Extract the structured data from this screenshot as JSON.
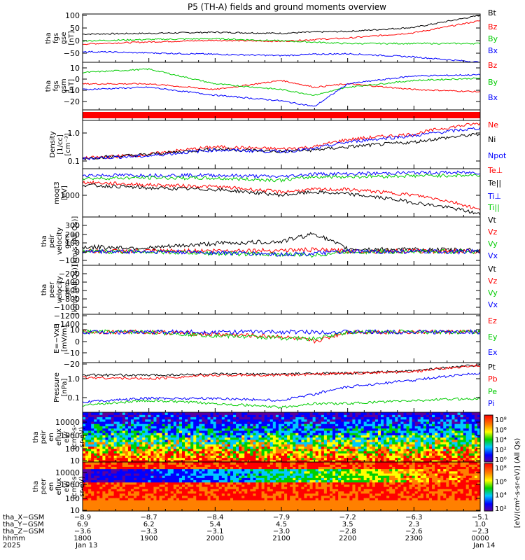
{
  "title": "P5 (TH-A) fields and ground moments overview",
  "colors": {
    "black": "#000000",
    "red": "#ff0000",
    "green": "#00cc00",
    "blue": "#0000ff"
  },
  "panels": [
    {
      "id": "fgs_gse",
      "ylabel": [
        "tha",
        "fgs",
        "gse",
        "[nT]"
      ],
      "yticks": [
        "100",
        "50",
        "0",
        "−50"
      ],
      "legend": [
        {
          "t": "Bt",
          "c": "black"
        },
        {
          "t": "Bz",
          "c": "red"
        },
        {
          "t": "By",
          "c": "green"
        },
        {
          "t": "Bx",
          "c": "blue"
        }
      ]
    },
    {
      "id": "fgs_gsm",
      "ylabel": [
        "tha",
        "fgs",
        "gsm",
        "[nT]"
      ],
      "yticks": [
        "10",
        "0",
        "−10",
        "−20"
      ],
      "legend": [
        {
          "t": "Bz",
          "c": "red"
        },
        {
          "t": "By",
          "c": "green"
        },
        {
          "t": "Bx",
          "c": "blue"
        }
      ]
    },
    {
      "id": "flag",
      "ylabel": [],
      "yticks": [],
      "legend": []
    },
    {
      "id": "density",
      "ylabel": [
        "Density",
        "[1/cc]",
        "[cm⁻³]"
      ],
      "yticks": [
        "1.0",
        "0.1"
      ],
      "legend": [
        {
          "t": "Ne",
          "c": "red"
        },
        {
          "t": "Ni",
          "c": "black"
        },
        {
          "t": "Npot",
          "c": "blue"
        }
      ]
    },
    {
      "id": "temp",
      "ylabel": [
        "moqt3",
        "[eV]"
      ],
      "yticks": [
        "1000"
      ],
      "legend": [
        {
          "t": "Te⊥",
          "c": "red"
        },
        {
          "t": "Te||",
          "c": "black"
        },
        {
          "t": "Ti⊥",
          "c": "blue"
        },
        {
          "t": "Ti||",
          "c": "green"
        }
      ]
    },
    {
      "id": "peir_vel",
      "ylabel": [
        "tha",
        "peir",
        "velocity",
        "gsm",
        "[km/s (All Qs)]"
      ],
      "yticks": [
        "300",
        "200",
        "100",
        "0",
        "−100"
      ],
      "legend": [
        {
          "t": "Vt",
          "c": "black"
        },
        {
          "t": "Vz",
          "c": "red"
        },
        {
          "t": "Vy",
          "c": "green"
        },
        {
          "t": "Vx",
          "c": "blue"
        }
      ]
    },
    {
      "id": "peer_vel",
      "ylabel": [
        "tha",
        "peer",
        "velocity",
        "gsm",
        "[km/s (All Qs)]"
      ],
      "yticks": [
        "−200",
        "−400",
        "−600",
        "−800",
        "−1000",
        "−1200",
        "−1400"
      ],
      "legend": [
        {
          "t": "Vt",
          "c": "black"
        },
        {
          "t": "Vz",
          "c": "red"
        },
        {
          "t": "Vy",
          "c": "green"
        },
        {
          "t": "Vx",
          "c": "blue"
        }
      ]
    },
    {
      "id": "efield",
      "ylabel": [
        "E=−VxB",
        "[mV/m]"
      ],
      "yticks": [
        "10",
        "0",
        "−10",
        "−20"
      ],
      "legend": [
        {
          "t": "Ez",
          "c": "red"
        },
        {
          "t": "Ey",
          "c": "green"
        },
        {
          "t": "Ex",
          "c": "blue"
        }
      ]
    },
    {
      "id": "pressure",
      "ylabel": [
        "Pressure",
        "[nPa]"
      ],
      "yticks": [
        "1.0",
        "0.1"
      ],
      "legend": [
        {
          "t": "Pt",
          "c": "black"
        },
        {
          "t": "Pb",
          "c": "red"
        },
        {
          "t": "Pe",
          "c": "green"
        },
        {
          "t": "Pi",
          "c": "blue"
        }
      ]
    },
    {
      "id": "peir_spec",
      "ylabel": [
        "tha",
        "peir",
        "en",
        "eflux",
        "eV/",
        "(cm²-s-",
        "sr-eV)"
      ],
      "yticks": [
        "10000",
        "1000",
        "100",
        "10"
      ],
      "legend": []
    },
    {
      "id": "peer_spec",
      "ylabel": [
        "tha",
        "peer",
        "en",
        "eflux",
        "eV/",
        "(cm²-s-",
        "sr-eV)"
      ],
      "yticks": [
        "10000",
        "1000",
        "100",
        "10"
      ],
      "legend": []
    }
  ],
  "colorbars": [
    {
      "ticks": [
        "10⁸",
        "10⁶",
        "10⁴",
        "10²",
        "10⁰"
      ],
      "label": "[eV/(cm²-s-sr-eV)] (All Qs)"
    },
    {
      "ticks": [
        "10⁸",
        "10⁶",
        "10⁴",
        "10²"
      ],
      "label": "[eV/(cm²-s-sr-eV)] (All Qs)"
    }
  ],
  "footer": {
    "row_labels": [
      "tha_X−GSM",
      "tha_Y−GSM",
      "tha_Z−GSM",
      "hhmm",
      "2025"
    ],
    "columns": [
      {
        "x": "−8.9",
        "y": "6.9",
        "z": "−3.6",
        "t": "1800",
        "d": "Jan 13"
      },
      {
        "x": "−8.7",
        "y": "6.2",
        "z": "−3.3",
        "t": "1900",
        "d": ""
      },
      {
        "x": "−8.4",
        "y": "5.4",
        "z": "−3.1",
        "t": "2000",
        "d": ""
      },
      {
        "x": "−7.9",
        "y": "4.5",
        "z": "−3.0",
        "t": "2100",
        "d": ""
      },
      {
        "x": "−7.2",
        "y": "3.5",
        "z": "−2.8",
        "t": "2200",
        "d": ""
      },
      {
        "x": "−6.3",
        "y": "2.3",
        "z": "−2.6",
        "t": "2300",
        "d": ""
      },
      {
        "x": "−5.1",
        "y": "1.0",
        "z": "−2.3",
        "t": "0000",
        "d": "Jan 14"
      }
    ]
  },
  "chart_data": {
    "type": "line",
    "title": "P5 (TH-A) fields and ground moments overview",
    "x_range": [
      "2025-01-13 18:00",
      "2025-01-14 00:00"
    ],
    "xlabel": "hhmm",
    "panels": [
      {
        "id": "fgs_gse",
        "ylim": [
          -70,
          110
        ],
        "x": [
          18.0,
          19.0,
          20.0,
          21.0,
          21.5,
          22.0,
          23.0,
          24.0
        ],
        "series": [
          {
            "name": "Bt",
            "values": [
              35,
              38,
              42,
              38,
              43,
              45,
              60,
              105
            ]
          },
          {
            "name": "Bz",
            "values": [
              -2,
              6,
              12,
              8,
              15,
              20,
              40,
              85
            ]
          },
          {
            "name": "By",
            "values": [
              10,
              15,
              18,
              10,
              5,
              0,
              0,
              0
            ]
          },
          {
            "name": "Bx",
            "values": [
              -30,
              -35,
              -40,
              -45,
              -40,
              -38,
              -50,
              -70
            ]
          }
        ]
      },
      {
        "id": "fgs_gsm",
        "ylim": [
          -28,
          14
        ],
        "x": [
          18.0,
          19.0,
          20.0,
          21.0,
          21.5,
          22.0,
          23.0,
          24.0
        ],
        "series": [
          {
            "name": "Bz",
            "values": [
              -5,
              -5,
              -10,
              -2,
              -8,
              -5,
              -10,
              -12
            ]
          },
          {
            "name": "By",
            "values": [
              5,
              8,
              -5,
              -10,
              -15,
              -8,
              -2,
              0
            ]
          },
          {
            "name": "Bx",
            "values": [
              -10,
              -8,
              -15,
              -20,
              -25,
              -5,
              2,
              3
            ]
          }
        ]
      },
      {
        "id": "density",
        "ylim": [
          0.07,
          2.5
        ],
        "log": true,
        "x": [
          18.0,
          19.0,
          20.0,
          21.0,
          21.5,
          22.0,
          23.0,
          24.0
        ],
        "series": [
          {
            "name": "Ne",
            "values": [
              0.15,
              0.2,
              0.35,
              0.3,
              0.35,
              0.6,
              0.9,
              2.0
            ]
          },
          {
            "name": "Ni",
            "values": [
              0.15,
              0.2,
              0.3,
              0.25,
              0.28,
              0.35,
              0.5,
              0.9
            ]
          },
          {
            "name": "Npot",
            "values": [
              0.15,
              0.18,
              0.28,
              0.25,
              0.3,
              0.5,
              0.8,
              1.4
            ]
          }
        ]
      },
      {
        "id": "temp",
        "ylim": [
          250,
          8000
        ],
        "log": true,
        "x": [
          18.0,
          19.0,
          20.0,
          21.0,
          21.5,
          22.0,
          23.0,
          24.0
        ],
        "series": [
          {
            "name": "Te⊥",
            "values": [
              3000,
              2500,
              2200,
              1500,
              1800,
              1800,
              1200,
              400
            ]
          },
          {
            "name": "Te||",
            "values": [
              2500,
              2000,
              1800,
              1200,
              1500,
              1300,
              700,
              300
            ]
          },
          {
            "name": "Ti⊥",
            "values": [
              5000,
              5000,
              5000,
              4500,
              5500,
              5500,
              6000,
              6000
            ]
          },
          {
            "name": "Ti||",
            "values": [
              4000,
              4200,
              4000,
              3500,
              4500,
              4500,
              4800,
              5000
            ]
          }
        ]
      },
      {
        "id": "peir_vel",
        "ylim": [
          -150,
          380
        ],
        "x": [
          18.0,
          19.0,
          20.0,
          21.0,
          21.5,
          22.0,
          23.0,
          24.0
        ],
        "series": [
          {
            "name": "Vt",
            "values": [
              50,
              40,
              90,
              110,
              200,
              30,
              20,
              20
            ]
          },
          {
            "name": "Vz",
            "values": [
              5,
              5,
              10,
              15,
              20,
              5,
              5,
              5
            ]
          },
          {
            "name": "Vy",
            "values": [
              0,
              0,
              -20,
              -30,
              -40,
              0,
              0,
              0
            ]
          },
          {
            "name": "Vx",
            "values": [
              0,
              0,
              -10,
              -30,
              -20,
              0,
              0,
              0
            ]
          }
        ]
      },
      {
        "id": "efield",
        "ylim": [
          -26,
          15
        ],
        "x": [
          18.0,
          19.0,
          20.0,
          21.0,
          21.5,
          22.0,
          23.0,
          24.0
        ],
        "series": [
          {
            "name": "Ez",
            "values": [
              0,
              0,
              -2,
              -4,
              -8,
              0,
              0,
              0
            ]
          },
          {
            "name": "Ey",
            "values": [
              0,
              0,
              -3,
              -5,
              -6,
              0,
              0,
              0
            ]
          },
          {
            "name": "Ex",
            "values": [
              0,
              0,
              0,
              0,
              0,
              0,
              0,
              0
            ]
          }
        ]
      },
      {
        "id": "pressure",
        "ylim": [
          0.025,
          3.5
        ],
        "log": true,
        "x": [
          18.0,
          19.0,
          20.0,
          21.0,
          21.5,
          22.0,
          23.0,
          24.0
        ],
        "series": [
          {
            "name": "Pt",
            "values": [
              1.0,
              1.0,
              1.1,
              1.1,
              1.2,
              1.2,
              1.5,
              2.8
            ]
          },
          {
            "name": "Pb",
            "values": [
              0.8,
              0.7,
              1.0,
              1.0,
              1.1,
              1.2,
              1.4,
              2.6
            ]
          },
          {
            "name": "Pe",
            "values": [
              0.05,
              0.08,
              0.06,
              0.04,
              0.06,
              0.06,
              0.08,
              0.1
            ]
          },
          {
            "name": "Pi",
            "values": [
              0.07,
              0.1,
              0.1,
              0.08,
              0.15,
              0.3,
              0.6,
              1.2
            ]
          }
        ]
      }
    ]
  }
}
